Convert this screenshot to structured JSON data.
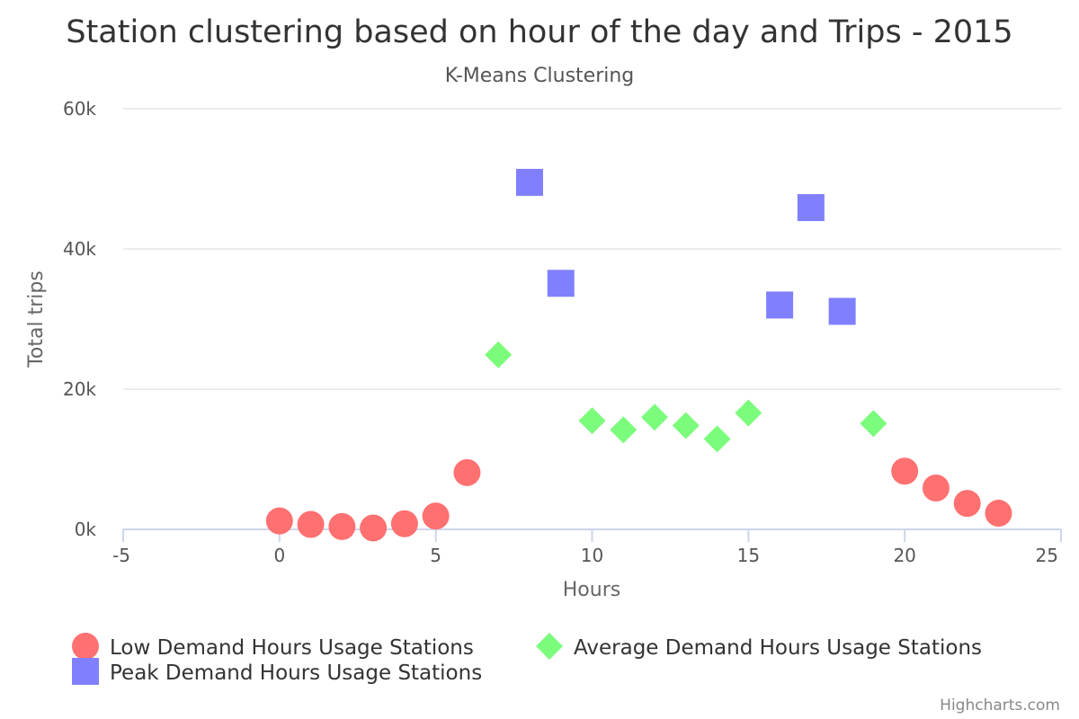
{
  "chart_data": {
    "type": "scatter",
    "title": "Station clustering based on hour of the day and Trips - 2015",
    "subtitle": "K-Means Clustering",
    "xlabel": "Hours",
    "ylabel": "Total trips",
    "xlim": [
      -5,
      25
    ],
    "ylim": [
      0,
      60000
    ],
    "xticks": [
      -5,
      0,
      5,
      10,
      15,
      20,
      25
    ],
    "xtick_labels": [
      "-5",
      "0",
      "5",
      "10",
      "15",
      "20",
      "25"
    ],
    "yticks": [
      0,
      20000,
      40000,
      60000
    ],
    "ytick_labels": [
      "0k",
      "20k",
      "40k",
      "60k"
    ],
    "grid": "horizontal",
    "legend_position": "bottom-left",
    "series": [
      {
        "name": "Low Demand Hours Usage Stations",
        "color": "#ff7070",
        "marker": "circle",
        "points": [
          [
            0,
            1200
          ],
          [
            1,
            700
          ],
          [
            2,
            400
          ],
          [
            3,
            200
          ],
          [
            4,
            800
          ],
          [
            5,
            1900
          ],
          [
            6,
            8100
          ],
          [
            20,
            8300
          ],
          [
            21,
            5900
          ],
          [
            22,
            3700
          ],
          [
            23,
            2300
          ]
        ]
      },
      {
        "name": "Average Demand Hours Usage Stations",
        "color": "#7cfc7c",
        "marker": "diamond",
        "points": [
          [
            7,
            24900
          ],
          [
            10,
            15500
          ],
          [
            11,
            14200
          ],
          [
            12,
            16000
          ],
          [
            13,
            14800
          ],
          [
            14,
            12900
          ],
          [
            15,
            16600
          ],
          [
            19,
            15100
          ]
        ]
      },
      {
        "name": "Peak Demand Hours Usage Stations",
        "color": "#8080ff",
        "marker": "square",
        "points": [
          [
            8,
            49500
          ],
          [
            9,
            35100
          ],
          [
            16,
            32000
          ],
          [
            17,
            45900
          ],
          [
            18,
            31100
          ]
        ]
      }
    ]
  },
  "credits": "Highcharts.com"
}
